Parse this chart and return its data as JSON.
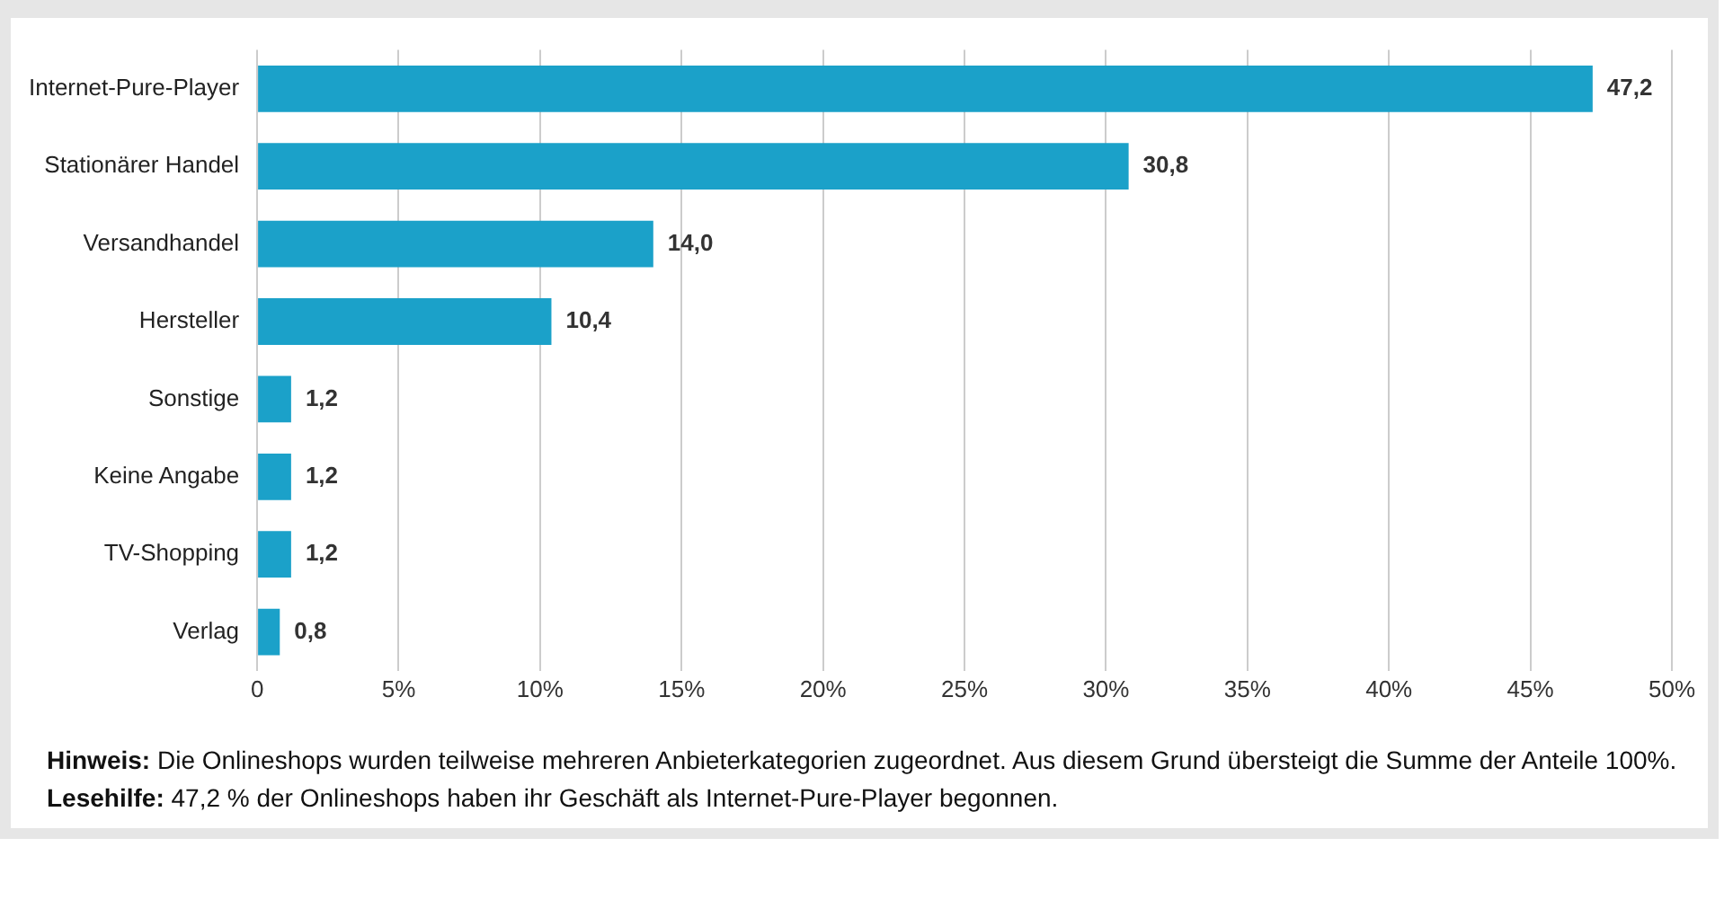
{
  "chart_data": {
    "type": "bar",
    "orientation": "horizontal",
    "categories": [
      "Internet-Pure-Player",
      "Stationärer Handel",
      "Versandhandel",
      "Hersteller",
      "Sonstige",
      "Keine Angabe",
      "TV-Shopping",
      "Verlag"
    ],
    "values": [
      47.2,
      30.8,
      14.0,
      10.4,
      1.2,
      1.2,
      1.2,
      0.8
    ],
    "value_labels": [
      "47,2",
      "30,8",
      "14,0",
      "10,4",
      "1,2",
      "1,2",
      "1,2",
      "0,8"
    ],
    "color": "#1ba1c9",
    "xlim": [
      0,
      50
    ],
    "xticks": [
      0,
      {
        "value": 5,
        "label": "5%"
      },
      {
        "value": 10,
        "label": "10%"
      },
      {
        "value": 15,
        "label": "15%"
      },
      {
        "value": 20,
        "label": "20%"
      },
      {
        "value": 25,
        "label": "25%"
      },
      {
        "value": 30,
        "label": "30%"
      },
      {
        "value": 35,
        "label": "35%"
      },
      {
        "value": 40,
        "label": "40%"
      },
      {
        "value": 45,
        "label": "45%"
      },
      {
        "value": 50,
        "label": "50%"
      }
    ],
    "grid": "x",
    "legend": false,
    "annotations": [
      "Hinweis: Die Onlineshops wurden teilweise mehreren Anbieterkategorien zugeordnet. Aus diesem Grund übersteigt die Summe der Anteile 100%.",
      "Lesehilfe: 47,2 % der Onlineshops haben ihr Geschäft als Internet-Pure-Player begonnen."
    ]
  }
}
